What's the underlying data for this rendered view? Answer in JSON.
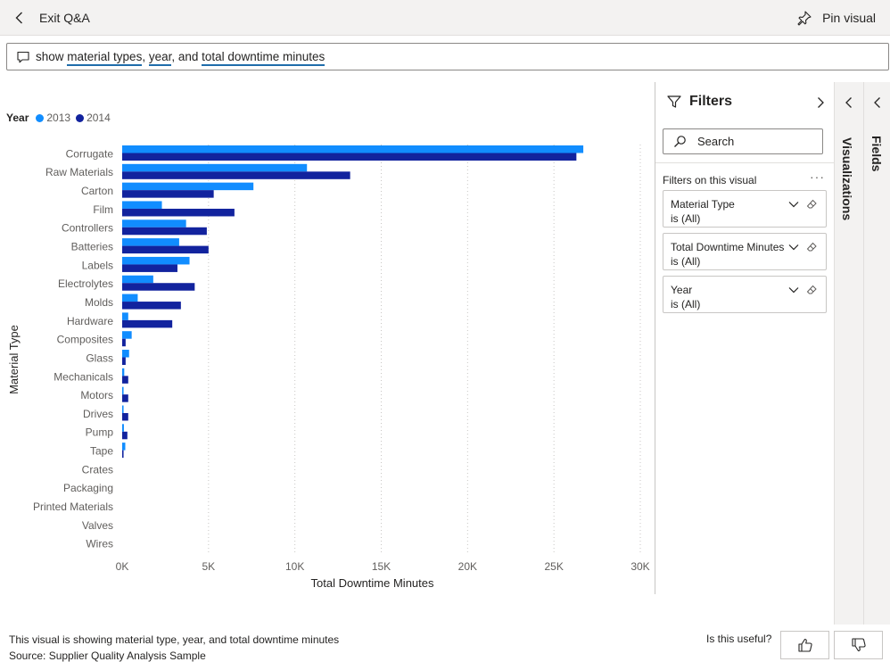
{
  "topbar": {
    "back_label": "Exit Q&A",
    "pin_label": "Pin visual"
  },
  "qa": {
    "parts": [
      {
        "text": "show ",
        "term": false
      },
      {
        "text": "material types",
        "term": true
      },
      {
        "text": ", ",
        "term": false
      },
      {
        "text": "year",
        "term": true
      },
      {
        "text": ", and ",
        "term": false
      },
      {
        "text": "total downtime minutes",
        "term": true
      }
    ]
  },
  "legend": {
    "title": "Year",
    "entries": [
      {
        "name": "2013",
        "color": "#118dff"
      },
      {
        "name": "2014",
        "color": "#12239e"
      }
    ]
  },
  "chart_data": {
    "type": "bar",
    "orientation": "horizontal",
    "ylabel": "Material Type",
    "xlabel": "Total Downtime Minutes",
    "xlim": [
      0,
      30000
    ],
    "xticks": [
      0,
      5000,
      10000,
      15000,
      20000,
      25000,
      30000
    ],
    "xtick_labels": [
      "0K",
      "5K",
      "10K",
      "15K",
      "20K",
      "25K",
      "30K"
    ],
    "grid": true,
    "legend_position": "top-left",
    "categories": [
      "Corrugate",
      "Raw Materials",
      "Carton",
      "Film",
      "Controllers",
      "Batteries",
      "Labels",
      "Electrolytes",
      "Molds",
      "Hardware",
      "Composites",
      "Glass",
      "Mechanicals",
      "Motors",
      "Drives",
      "Pump",
      "Tape",
      "Crates",
      "Packaging",
      "Printed Materials",
      "Valves",
      "Wires"
    ],
    "series": [
      {
        "name": "2013",
        "color": "#118dff",
        "values": [
          26700,
          10700,
          7600,
          2300,
          3700,
          3300,
          3900,
          1800,
          900,
          350,
          550,
          400,
          120,
          80,
          80,
          100,
          180,
          0,
          0,
          0,
          0,
          0
        ]
      },
      {
        "name": "2014",
        "color": "#12239e",
        "values": [
          26300,
          13200,
          5300,
          6500,
          4900,
          5000,
          3200,
          4200,
          3400,
          2900,
          200,
          200,
          350,
          350,
          350,
          300,
          80,
          0,
          0,
          0,
          0,
          0
        ]
      }
    ]
  },
  "filters": {
    "title": "Filters",
    "search_placeholder": "Search",
    "subtitle": "Filters on this visual",
    "more": "···",
    "cards": [
      {
        "name": "Material Type",
        "value": "is (All)"
      },
      {
        "name": "Total Downtime Minutes",
        "value": "is (All)"
      },
      {
        "name": "Year",
        "value": "is (All)"
      }
    ]
  },
  "panes": {
    "visualizations": "Visualizations",
    "fields": "Fields"
  },
  "footer": {
    "description": "This visual is showing material type, year, and total downtime minutes",
    "source": "Source: Supplier Quality Analysis Sample",
    "useful_question": "Is this useful?"
  }
}
